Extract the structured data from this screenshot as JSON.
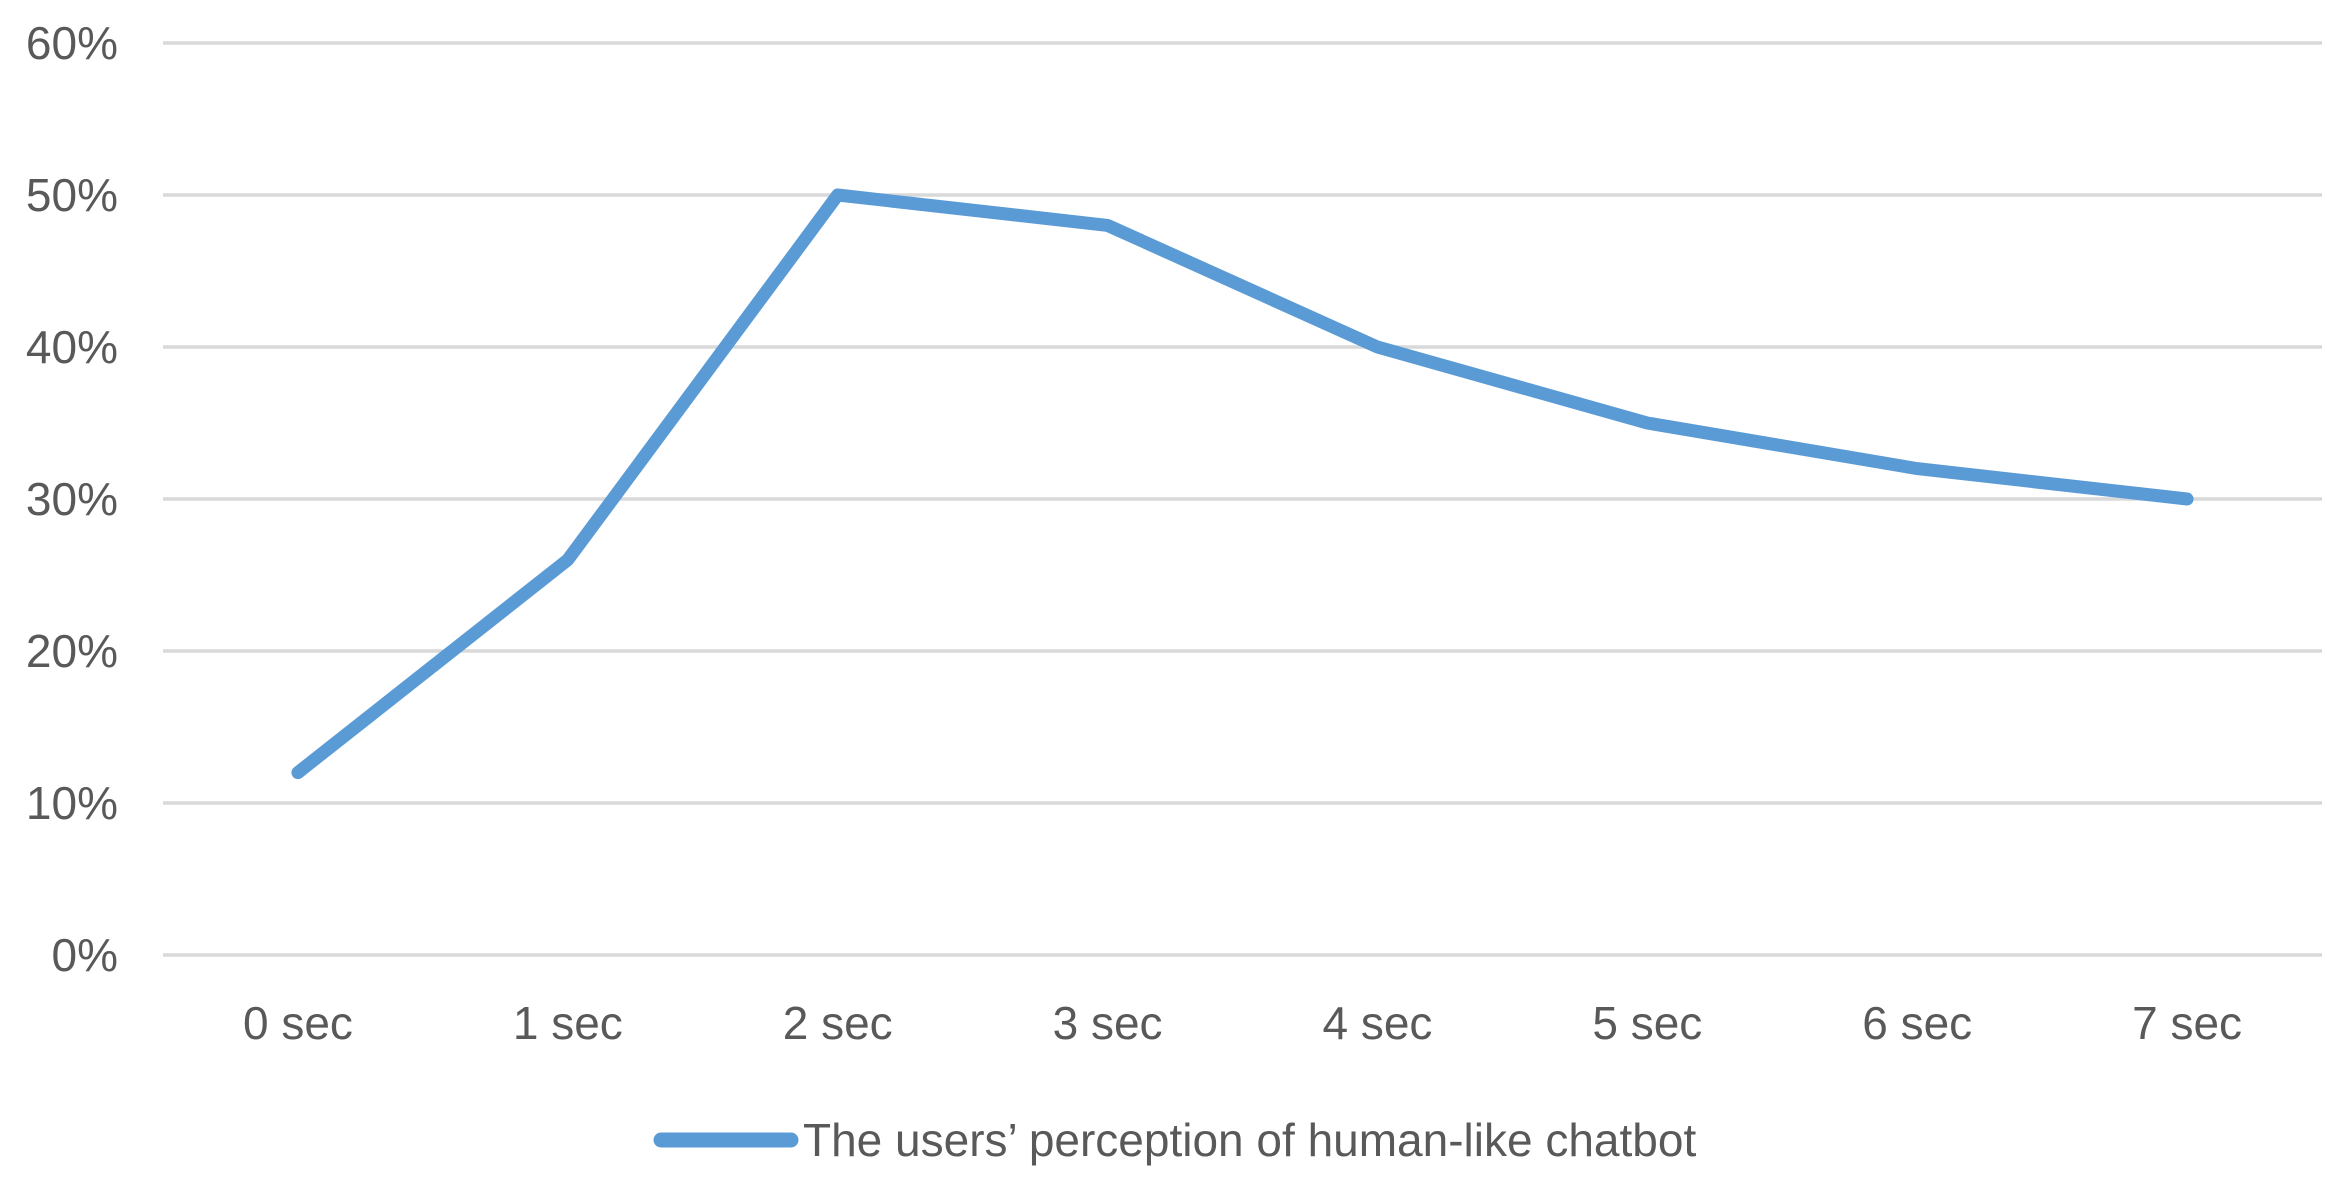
{
  "chart_data": {
    "type": "line",
    "title": "",
    "xlabel": "",
    "ylabel": "",
    "categories": [
      "0 sec",
      "1 sec",
      "2 sec",
      "3 sec",
      "4 sec",
      "5 sec",
      "6 sec",
      "7 sec"
    ],
    "series": [
      {
        "name": "The users’ perception of human-like chatbot",
        "values": [
          12,
          26,
          50,
          48,
          40,
          35,
          32,
          30
        ]
      }
    ],
    "ylim": [
      0,
      60
    ],
    "ytick_step": 10,
    "ytick_labels": [
      "0%",
      "10%",
      "20%",
      "30%",
      "40%",
      "50%",
      "60%"
    ],
    "ytick_format": "percent",
    "grid": true,
    "legend_position": "bottom",
    "colors": {
      "line": "#5B9BD5",
      "gridline": "#D9D9D9",
      "text": "#595959",
      "background": "#FFFFFF"
    }
  }
}
